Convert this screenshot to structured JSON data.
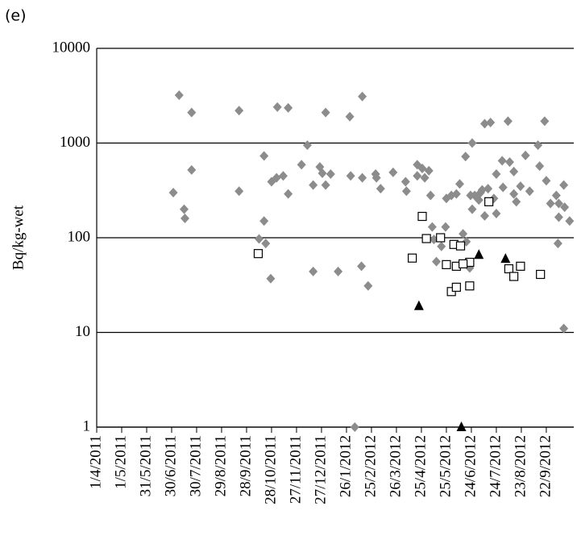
{
  "chart_data": {
    "type": "scatter",
    "panel_label": "(e)",
    "ylabel": "Bq/kg-wet",
    "log_y": true,
    "grid": true,
    "xlim": [
      "2011-04-01",
      "2012-10-25"
    ],
    "xticks": [
      {
        "value": "2011-04-01",
        "label": "1/4/2011"
      },
      {
        "value": "2011-05-01",
        "label": "1/5/2011"
      },
      {
        "value": "2011-05-31",
        "label": "31/5/2011"
      },
      {
        "value": "2011-06-30",
        "label": "30/6/2011"
      },
      {
        "value": "2011-07-30",
        "label": "30/7/2011"
      },
      {
        "value": "2011-08-29",
        "label": "29/8/2011"
      },
      {
        "value": "2011-09-28",
        "label": "28/9/2011"
      },
      {
        "value": "2011-10-28",
        "label": "28/10/2011"
      },
      {
        "value": "2011-11-27",
        "label": "27/11/2011"
      },
      {
        "value": "2011-12-27",
        "label": "27/12/2011"
      },
      {
        "value": "2012-01-26",
        "label": "26/1/2012"
      },
      {
        "value": "2012-02-25",
        "label": "25/2/2012"
      },
      {
        "value": "2012-03-26",
        "label": "26/3/2012"
      },
      {
        "value": "2012-04-25",
        "label": "25/4/2012"
      },
      {
        "value": "2012-05-25",
        "label": "25/5/2012"
      },
      {
        "value": "2012-06-24",
        "label": "24/6/2012"
      },
      {
        "value": "2012-07-24",
        "label": "24/7/2012"
      },
      {
        "value": "2012-08-23",
        "label": "23/8/2012"
      },
      {
        "value": "2012-09-22",
        "label": "22/9/2012"
      }
    ],
    "ylim": [
      1,
      10000
    ],
    "yticks": [
      1,
      10,
      100,
      1000,
      10000
    ],
    "series": [
      {
        "marker": "diamond",
        "color": "#8c8c8c",
        "x": [
          "2011-07-02",
          "2011-07-09",
          "2011-07-15",
          "2011-07-16",
          "2011-07-24",
          "2011-07-24",
          "2011-09-19",
          "2011-09-19",
          "2011-10-13",
          "2011-10-19",
          "2011-10-19",
          "2011-10-21",
          "2011-10-27",
          "2011-10-28",
          "2011-11-03",
          "2011-11-04",
          "2011-11-11",
          "2011-11-17",
          "2011-11-17",
          "2011-12-03",
          "2011-12-10",
          "2011-12-17",
          "2011-12-17",
          "2011-12-25",
          "2011-12-28",
          "2012-01-01",
          "2012-01-01",
          "2012-01-07",
          "2012-01-16",
          "2012-01-30",
          "2012-01-31",
          "2012-02-14",
          "2012-02-14",
          "2012-02-13",
          "2012-02-21",
          "2012-03-01",
          "2012-03-02",
          "2012-03-07",
          "2012-03-22",
          "2012-04-06",
          "2012-04-07",
          "2012-04-20",
          "2012-04-20",
          "2012-04-26",
          "2012-04-29",
          "2012-05-04",
          "2012-05-06",
          "2012-05-08",
          "2012-05-10",
          "2012-05-13",
          "2012-05-19",
          "2012-05-24",
          "2012-05-25",
          "2012-05-31",
          "2012-06-06",
          "2012-06-10",
          "2012-06-14",
          "2012-06-17",
          "2012-06-18",
          "2012-06-22",
          "2012-06-23",
          "2012-06-25",
          "2012-06-25",
          "2012-06-28",
          "2012-07-03",
          "2012-07-05",
          "2012-07-07",
          "2012-07-10",
          "2012-07-10",
          "2012-07-14",
          "2012-07-17",
          "2012-07-21",
          "2012-07-24",
          "2012-07-24",
          "2012-07-31",
          "2012-08-01",
          "2012-08-07",
          "2012-08-09",
          "2012-08-14",
          "2012-08-14",
          "2012-08-17",
          "2012-08-22",
          "2012-08-28",
          "2012-09-02",
          "2012-09-12",
          "2012-09-14",
          "2012-09-20",
          "2012-09-22",
          "2012-09-27",
          "2012-10-04",
          "2012-10-07",
          "2012-10-07",
          "2012-10-06",
          "2012-10-13",
          "2012-10-13",
          "2012-10-14",
          "2012-10-20",
          "2012-02-05"
        ],
        "values": [
          300,
          3200,
          200,
          160,
          2100,
          520,
          2200,
          310,
          97,
          730,
          150,
          87,
          37,
          390,
          430,
          2400,
          450,
          2350,
          290,
          590,
          950,
          360,
          44,
          560,
          480,
          360,
          2100,
          470,
          44,
          1900,
          450,
          3100,
          430,
          50,
          31,
          470,
          430,
          330,
          490,
          390,
          310,
          590,
          450,
          540,
          430,
          510,
          280,
          130,
          96,
          56,
          81,
          130,
          260,
          280,
          290,
          370,
          110,
          720,
          91,
          48,
          280,
          1000,
          200,
          280,
          250,
          300,
          320,
          1600,
          170,
          330,
          1650,
          260,
          180,
          470,
          650,
          340,
          1700,
          630,
          500,
          290,
          240,
          350,
          740,
          310,
          950,
          570,
          1700,
          400,
          230,
          280,
          230,
          165,
          87,
          11,
          360,
          210,
          150,
          1
        ]
      },
      {
        "marker": "square",
        "color": "#000000",
        "x": [
          "2011-10-12",
          "2012-04-26",
          "2012-05-01",
          "2012-04-14",
          "2012-05-18",
          "2012-05-25",
          "2012-06-03",
          "2012-06-11",
          "2012-06-06",
          "2012-05-31",
          "2012-06-06",
          "2012-06-22",
          "2012-06-22",
          "2012-06-14",
          "2012-07-15",
          "2012-08-08",
          "2012-08-14",
          "2012-08-22",
          "2012-09-15"
        ],
        "values": [
          68,
          168,
          98,
          61,
          100,
          52,
          85,
          82,
          50,
          27,
          30,
          31,
          55,
          53,
          240,
          47,
          39,
          50,
          41
        ]
      },
      {
        "marker": "triangle",
        "color": "#000000",
        "x": [
          "2012-04-22",
          "2012-07-03",
          "2012-08-04",
          "2012-06-12"
        ],
        "values": [
          19,
          66,
          60,
          1
        ]
      }
    ]
  }
}
